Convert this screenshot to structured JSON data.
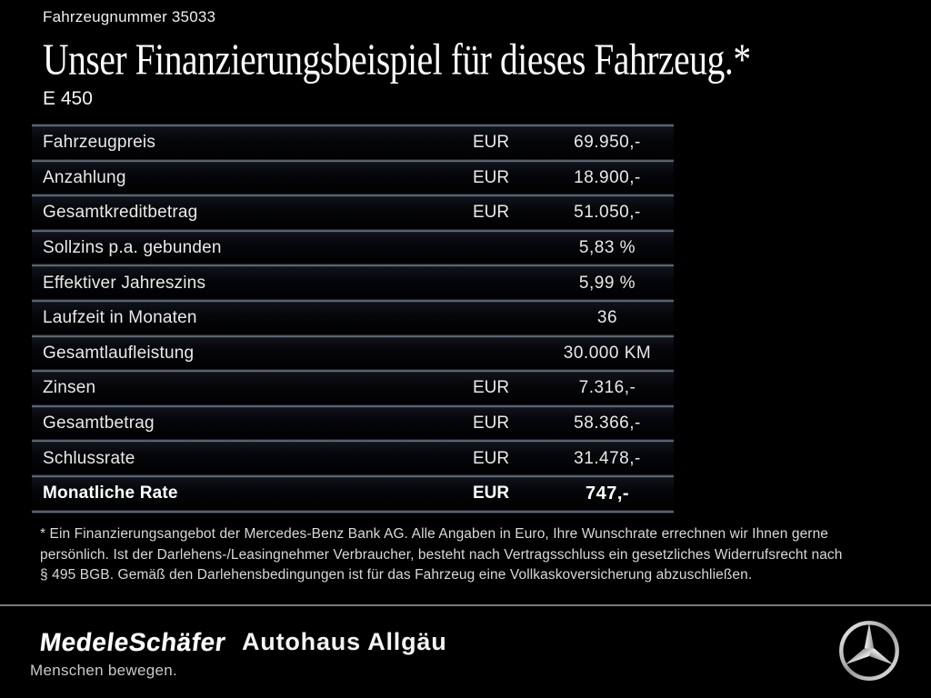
{
  "header": {
    "vehicle_number": "Fahrzeugnummer 35033",
    "title": "Unser Finanzierungsbeispiel für dieses Fahrzeug.*",
    "model": "E 450"
  },
  "table": {
    "rows": [
      {
        "label": "Fahrzeugpreis",
        "currency": "EUR",
        "value": "69.950,-",
        "bold": false
      },
      {
        "label": "Anzahlung",
        "currency": "EUR",
        "value": "18.900,-",
        "bold": false
      },
      {
        "label": "Gesamtkreditbetrag",
        "currency": "EUR",
        "value": "51.050,-",
        "bold": false
      },
      {
        "label": "Sollzins p.a. gebunden",
        "currency": "",
        "value": "5,83 %",
        "bold": false
      },
      {
        "label": "Effektiver Jahreszins",
        "currency": "",
        "value": "5,99 %",
        "bold": false
      },
      {
        "label": "Laufzeit in Monaten",
        "currency": "",
        "value": "36",
        "bold": false
      },
      {
        "label": "Gesamtlaufleistung",
        "currency": "",
        "value": "30.000 KM",
        "bold": false
      },
      {
        "label": "Zinsen",
        "currency": "EUR",
        "value": "7.316,-",
        "bold": false
      },
      {
        "label": "Gesamtbetrag",
        "currency": "EUR",
        "value": "58.366,-",
        "bold": false
      },
      {
        "label": "Schlussrate",
        "currency": "EUR",
        "value": "31.478,-",
        "bold": false
      },
      {
        "label": "Monatliche Rate",
        "currency": "EUR",
        "value": "747,-",
        "bold": true
      }
    ]
  },
  "disclaimer": {
    "lines": [
      "* Ein Finanzierungsangebot der Mercedes-Benz Bank AG. Alle Angaben in Euro, Ihre Wunschrate errechnen wir Ihnen gerne",
      "persönlich. Ist der Darlehens-/Leasingnehmer Verbraucher, besteht nach Vertragsschluss ein gesetzliches Widerrufsrecht nach",
      "§ 495 BGB. Gemäß den Darlehensbedingungen ist für das Fahrzeug eine Vollkaskoversicherung abzuschließen."
    ]
  },
  "footer": {
    "dealer_logo_primary": "MedeleSchäfer",
    "dealer_logo_secondary": "Autohaus Allgäu",
    "tagline": "Menschen bewegen.",
    "brand_icon": "mercedes-star-icon"
  },
  "colors": {
    "background": "#000000",
    "text": "#ffffff",
    "separator": "#7b8595",
    "footer_divider": "#7b7b7b",
    "star_silver": "#d9d9d9"
  }
}
